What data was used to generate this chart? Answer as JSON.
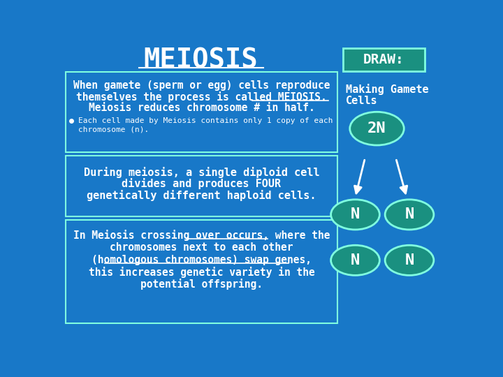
{
  "bg_color": "#1878c8",
  "title": "MEIOSIS",
  "draw_label": "DRAW:",
  "text_color": "#ffffff",
  "cell_color": "#1a9080",
  "cell_edge": "#80ffe0",
  "box_edge_color": "#80ffe0",
  "box1_line1": "When gamete (sperm or egg) cells reproduce",
  "box1_line2a": "themselves the process is called ",
  "box1_line2b": "MEIOSIS.",
  "box1_line3": "Meiosis reduces chromosome # in half.",
  "box1_bullet1": "Each cell made by Meiosis contains only 1 copy of each",
  "box1_bullet2": "chromosome (n).",
  "box2_line1": "During meiosis, a single diploid cell",
  "box2_line2": "divides and produces FOUR",
  "box2_line3": "genetically different haploid cells.",
  "box3_line1a": "In Meiosis ",
  "box3_line1b": "crossing over",
  "box3_line1c": " occurs, where the",
  "box3_line2": "chromosomes next to each other",
  "box3_line3a": "(",
  "box3_line3b": "homologous chromosomes",
  "box3_line3c": ") swap genes,",
  "box3_line4": "this increases genetic variety in the",
  "box3_line5": "potential offspring.",
  "gamete_line1": "Making Gamete",
  "gamete_line2": "Cells",
  "cell_2N": "2N",
  "cell_N": "N"
}
